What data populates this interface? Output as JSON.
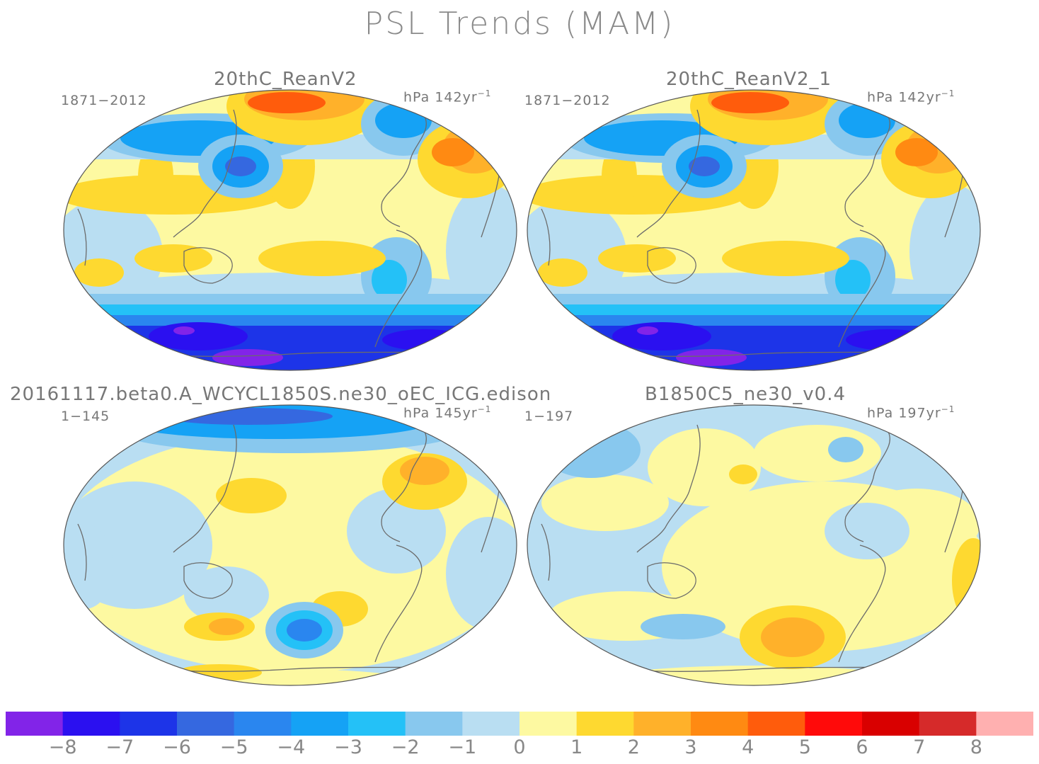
{
  "figure": {
    "title": "PSL Trends (MAM)"
  },
  "panels": [
    {
      "title": "20thC_ReanV2",
      "period": "1871−2012",
      "units_text": "hPa 142yr",
      "units_sup": "−1",
      "style": "reanalysis"
    },
    {
      "title": "20thC_ReanV2_1",
      "period": "1871−2012",
      "units_text": "hPa 142yr",
      "units_sup": "−1",
      "style": "reanalysis"
    },
    {
      "title": "20161117.beta0.A_WCYCL1850S.ne30_oEC_ICG.edison",
      "period": "1−145",
      "units_text": "hPa 145yr",
      "units_sup": "−1",
      "style": "model_a"
    },
    {
      "title": "B1850C5_ne30_v0.4",
      "period": "1−197",
      "units_text": "hPa 197yr",
      "units_sup": "−1",
      "style": "model_b"
    }
  ],
  "colorbar": {
    "colors": [
      "#8224e8",
      "#2b10f0",
      "#1d34e8",
      "#3568e0",
      "#2a86ef",
      "#15a2f5",
      "#24c1f7",
      "#88c8ee",
      "#b9def2",
      "#fdf9a1",
      "#fed930",
      "#ffb12a",
      "#ff8a12",
      "#ff5c0c",
      "#ff0a0a",
      "#d90000",
      "#d62a2a",
      "#ffb0b0"
    ],
    "labels": [
      "−8",
      "−7",
      "−6",
      "−5",
      "−4",
      "−3",
      "−2",
      "−1",
      "0",
      "1",
      "2",
      "3",
      "4",
      "5",
      "6",
      "7",
      "8"
    ]
  }
}
